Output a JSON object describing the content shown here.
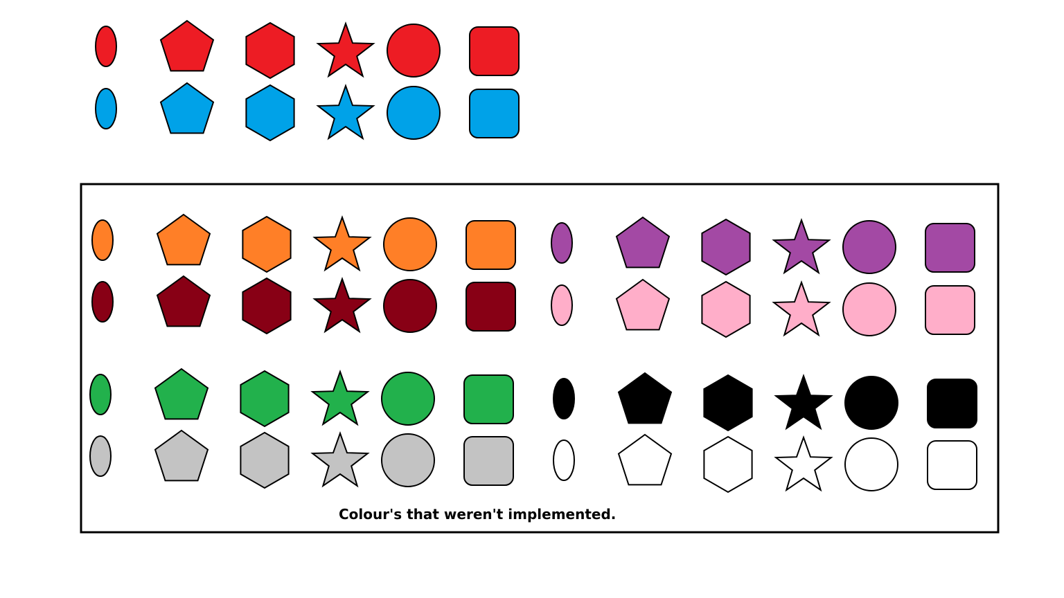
{
  "caption": "Colour's that weren't implemented.",
  "shape_types": [
    "ellipse-icon",
    "pentagon-icon",
    "hexagon-icon",
    "star-icon",
    "circle-icon",
    "rounded-square-icon"
  ],
  "implemented": [
    {
      "name": "red",
      "color": "#ED1C24"
    },
    {
      "name": "blue",
      "color": "#00A2E8"
    }
  ],
  "not_implemented": [
    {
      "name": "orange",
      "color": "#FF7F27"
    },
    {
      "name": "dark-red",
      "color": "#880015"
    },
    {
      "name": "purple",
      "color": "#A349A4"
    },
    {
      "name": "pink",
      "color": "#FFAEC9"
    },
    {
      "name": "green",
      "color": "#22B14C"
    },
    {
      "name": "grey",
      "color": "#C3C3C3"
    },
    {
      "name": "black",
      "color": "#000000"
    },
    {
      "name": "white",
      "color": "#FFFFFF"
    }
  ]
}
